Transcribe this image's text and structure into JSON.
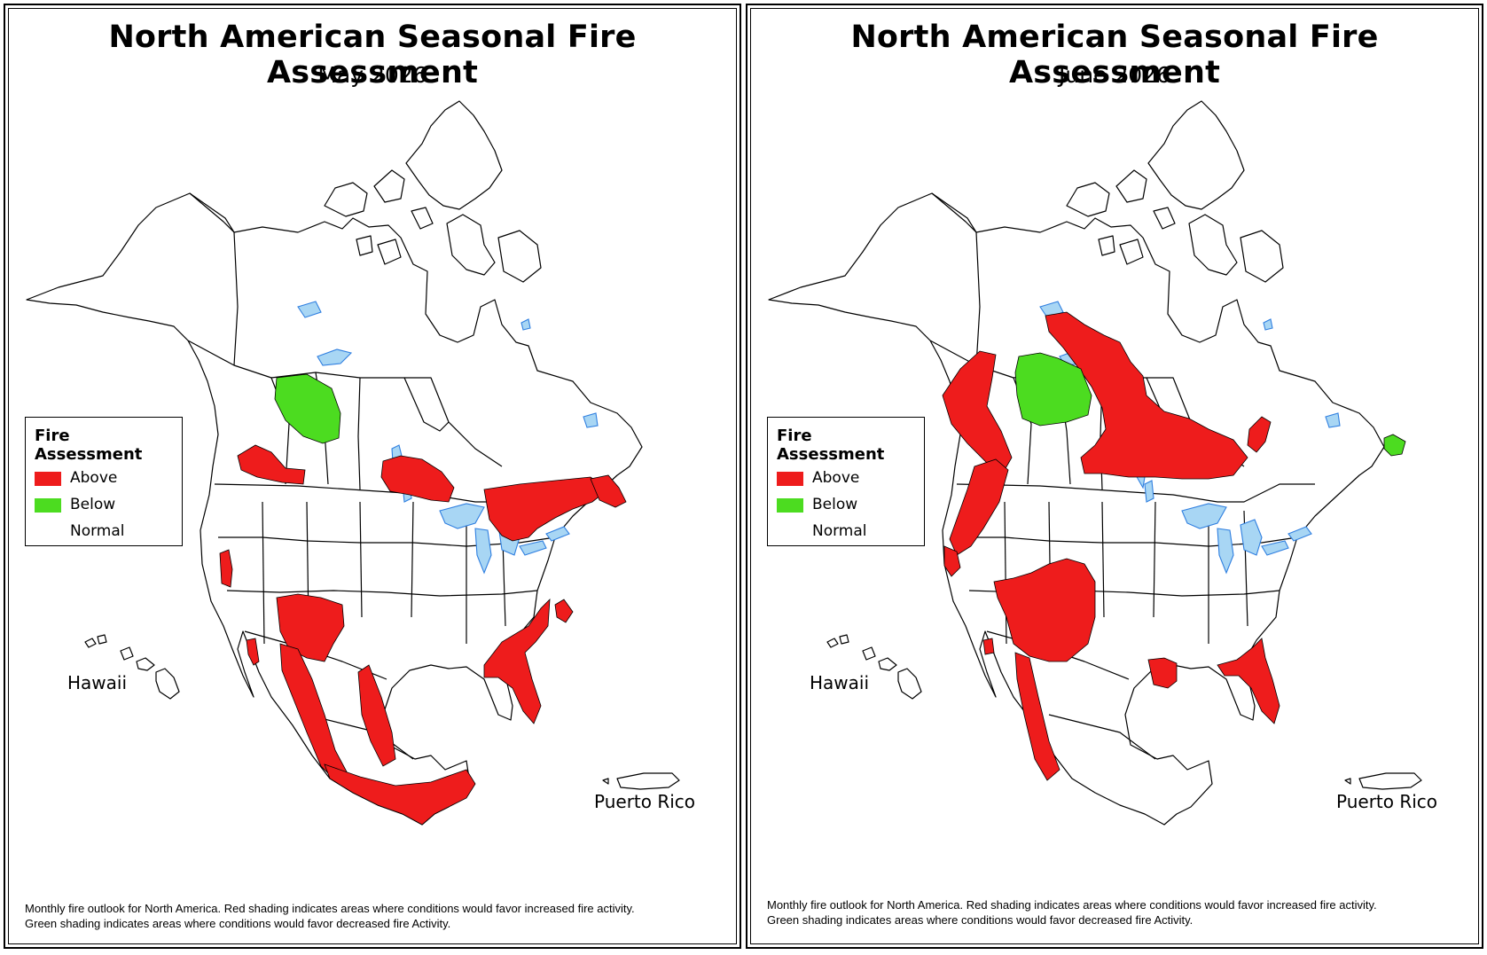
{
  "colors": {
    "above": "#ee1c1c",
    "below": "#4cdc20",
    "water": "#a8d6f4",
    "water_outline": "#2f7fe0",
    "outline": "#000000"
  },
  "legend": {
    "title": "Fire Assessment",
    "items": [
      {
        "label": "Above",
        "color": "#ee1c1c"
      },
      {
        "label": "Below",
        "color": "#4cdc20"
      },
      {
        "label": "Normal",
        "color": "#ffffff"
      }
    ]
  },
  "labels": {
    "hawaii": "Hawaii",
    "puerto_rico": "Puerto Rico"
  },
  "footnote": {
    "line1": "Monthly fire outlook for North America. Red shading indicates areas where conditions would favor increased fire activity.",
    "line2": "Green shading indicates areas where conditions would favor decreased fire Activity."
  },
  "maps": [
    {
      "title": "North American Seasonal Fire Assessment",
      "subtitle": "May 2026",
      "above_regions": [
        "Southern British Columbia",
        "Southern Manitoba",
        "Ontario and Quebec border belt",
        "New Brunswick and Nova Scotia",
        "Central California",
        "Southern California",
        "Arizona and New Mexico",
        "Western Mexico",
        "Eastern Mexico",
        "Southern Mexico",
        "Florida and Georgia coast",
        "Eastern North Carolina"
      ],
      "below_regions": [
        "Northeastern British Columbia and northwestern Alberta"
      ]
    },
    {
      "title": "North American Seasonal Fire Assessment",
      "subtitle": "June 2026",
      "above_regions": [
        "Coastal British Columbia",
        "Pacific Northwest",
        "Northern California",
        "Southern Nevada",
        "Utah, Arizona and New Mexico",
        "Western Mexico",
        "Saskatchewan, Manitoba and Northwest Territories",
        "Northern Ontario",
        "Northern Quebec",
        "Louisiana",
        "Florida and Georgia"
      ],
      "below_regions": [
        "Northern Alberta",
        "Newfoundland"
      ]
    }
  ]
}
